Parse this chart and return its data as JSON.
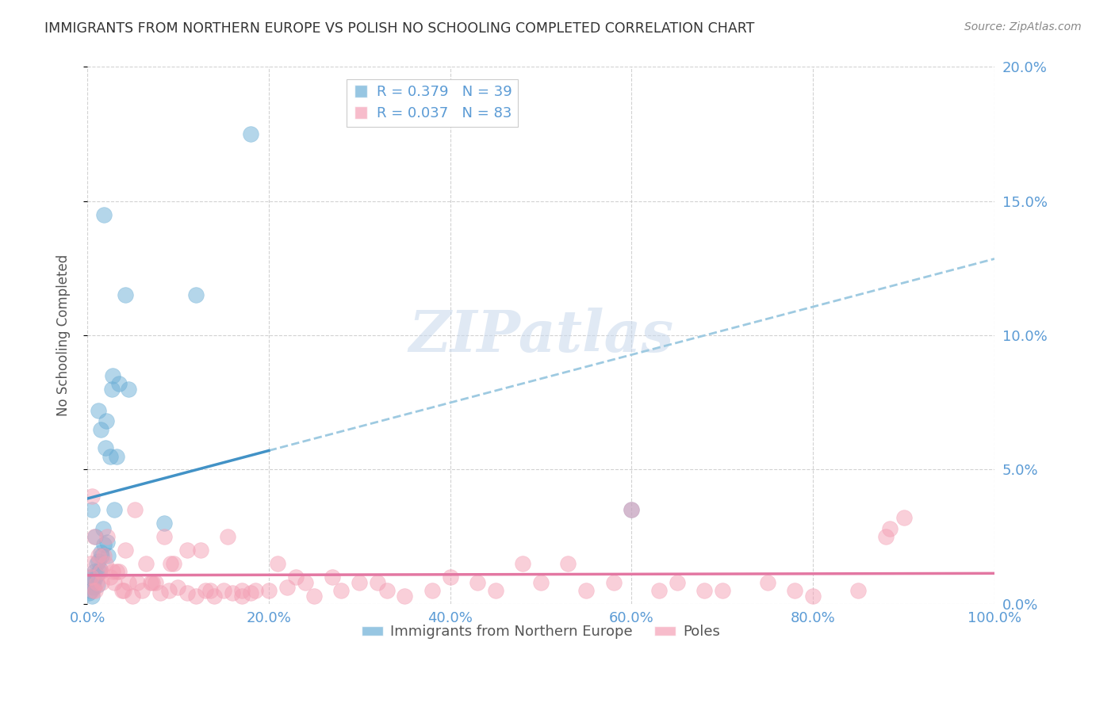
{
  "title": "IMMIGRANTS FROM NORTHERN EUROPE VS POLISH NO SCHOOLING COMPLETED CORRELATION CHART",
  "source": "Source: ZipAtlas.com",
  "ylabel": "No Schooling Completed",
  "ytick_labels": [
    "0.0%",
    "5.0%",
    "10.0%",
    "15.0%",
    "20.0%"
  ],
  "ytick_vals": [
    0.0,
    5.0,
    10.0,
    15.0,
    20.0
  ],
  "xtick_vals": [
    0,
    20,
    40,
    60,
    80,
    100
  ],
  "xmin": 0.0,
  "xmax": 100.0,
  "ymin": 0.0,
  "ymax": 20.0,
  "legend_blue_r": "R = 0.379",
  "legend_blue_n": "N = 39",
  "legend_pink_r": "R = 0.037",
  "legend_pink_n": "N = 83",
  "legend_label_blue": "Immigrants from Northern Europe",
  "legend_label_pink": "Poles",
  "blue_color": "#6baed6",
  "pink_color": "#f4a0b5",
  "blue_line_color": "#4292c6",
  "pink_line_color": "#e377a2",
  "dashed_line_color": "#9ecae1",
  "tick_color": "#5b9bd5",
  "watermark": "ZIPatlas",
  "blue_scatter_x": [
    0.5,
    1.2,
    2.1,
    2.8,
    3.5,
    1.8,
    2.5,
    4.2,
    0.8,
    1.5,
    2.0,
    0.3,
    0.6,
    1.0,
    1.3,
    0.9,
    1.7,
    2.3,
    3.0,
    0.4,
    0.7,
    1.1,
    1.4,
    1.6,
    2.2,
    2.7,
    3.2,
    0.2,
    0.5,
    0.8,
    1.0,
    1.2,
    1.5,
    1.8,
    8.5,
    12.0,
    18.0,
    60.0,
    4.5
  ],
  "blue_scatter_y": [
    3.5,
    7.2,
    6.8,
    8.5,
    8.2,
    14.5,
    5.5,
    11.5,
    1.2,
    6.5,
    5.8,
    1.0,
    0.8,
    1.5,
    1.2,
    2.5,
    2.8,
    1.8,
    3.5,
    0.5,
    0.6,
    0.7,
    1.3,
    1.8,
    2.3,
    8.0,
    5.5,
    0.4,
    0.3,
    0.9,
    1.1,
    1.6,
    1.9,
    2.2,
    3.0,
    11.5,
    17.5,
    3.5,
    8.0
  ],
  "pink_scatter_x": [
    0.5,
    0.8,
    1.2,
    1.5,
    2.0,
    2.5,
    3.0,
    3.5,
    4.0,
    4.5,
    5.0,
    6.0,
    7.0,
    8.0,
    9.0,
    10.0,
    11.0,
    12.0,
    13.0,
    14.0,
    15.0,
    16.0,
    17.0,
    18.0,
    20.0,
    22.0,
    25.0,
    28.0,
    30.0,
    35.0,
    40.0,
    45.0,
    50.0,
    55.0,
    60.0,
    65.0,
    70.0,
    75.0,
    80.0,
    85.0,
    90.0,
    0.3,
    0.6,
    1.0,
    1.8,
    2.2,
    3.2,
    4.2,
    5.5,
    6.5,
    7.5,
    8.5,
    9.5,
    11.0,
    13.5,
    15.5,
    18.5,
    21.0,
    24.0,
    27.0,
    32.0,
    38.0,
    48.0,
    58.0,
    68.0,
    78.0,
    88.0,
    0.4,
    0.9,
    1.6,
    2.8,
    3.8,
    5.2,
    7.2,
    9.2,
    12.5,
    17.0,
    23.0,
    33.0,
    43.0,
    53.0,
    63.0,
    88.5
  ],
  "pink_scatter_y": [
    4.0,
    2.5,
    1.8,
    1.2,
    1.5,
    1.0,
    0.8,
    1.2,
    0.5,
    0.8,
    0.3,
    0.5,
    0.8,
    0.4,
    0.5,
    0.6,
    0.4,
    0.3,
    0.5,
    0.3,
    0.5,
    0.4,
    0.3,
    0.4,
    0.5,
    0.6,
    0.3,
    0.5,
    0.8,
    0.3,
    1.0,
    0.5,
    0.8,
    0.5,
    3.5,
    0.8,
    0.5,
    0.8,
    0.3,
    0.5,
    3.2,
    1.5,
    0.5,
    0.8,
    1.8,
    2.5,
    1.2,
    2.0,
    0.8,
    1.5,
    0.8,
    2.5,
    1.5,
    2.0,
    0.5,
    2.5,
    0.5,
    1.5,
    0.8,
    1.0,
    0.8,
    0.5,
    1.5,
    0.8,
    0.5,
    0.5,
    2.5,
    1.0,
    0.5,
    0.8,
    1.2,
    0.5,
    3.5,
    0.8,
    1.5,
    2.0,
    0.5,
    1.0,
    0.5,
    0.8,
    1.5,
    0.5,
    2.8
  ]
}
